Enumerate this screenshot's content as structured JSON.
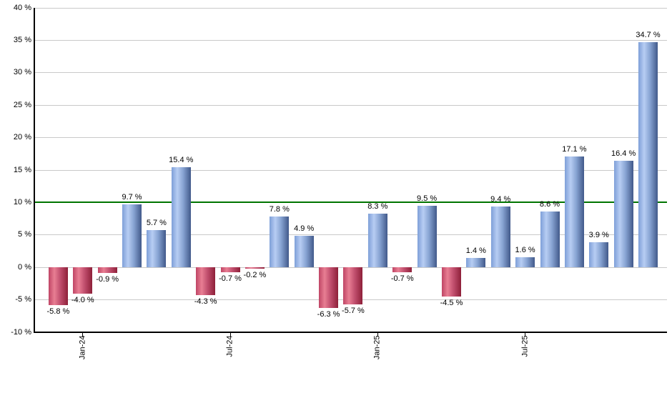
{
  "chart_data": {
    "type": "bar",
    "title": "",
    "xlabel": "",
    "ylabel": "",
    "unit": "%",
    "ylim": [
      -10,
      40
    ],
    "ytick_step": 5,
    "grid": true,
    "legend": "none",
    "y_tick_labels": [
      "40 %",
      "35 %",
      "30 %",
      "25 %",
      "20 %",
      "15 %",
      "10 %",
      "5 %",
      "0 %",
      "-5 %",
      "-10 %"
    ],
    "values": [
      -5.8,
      -4.0,
      -0.9,
      9.7,
      5.7,
      15.4,
      -4.3,
      -0.7,
      -0.2,
      7.8,
      4.9,
      -6.3,
      -5.7,
      8.3,
      -0.7,
      9.5,
      -4.5,
      1.4,
      9.4,
      1.6,
      8.6,
      17.1,
      3.9,
      16.4,
      34.7
    ],
    "value_labels": [
      "-5.8 %",
      "-4.0 %",
      "-0.9 %",
      "9.7 %",
      "5.7 %",
      "15.4 %",
      "-4.3 %",
      "-0.7 %",
      "-0.2 %",
      "7.8 %",
      "4.9 %",
      "-6.3 %",
      "-5.7 %",
      "8.3 %",
      "-0.7 %",
      "9.5 %",
      "-4.5 %",
      "1.4 %",
      "9.4 %",
      "1.6 %",
      "8.6 %",
      "17.1 %",
      "3.9 %",
      "16.4 %",
      "34.7 %"
    ],
    "x_ticks": [
      {
        "bar_index": 1,
        "label": "Jan-24"
      },
      {
        "bar_index": 7,
        "label": "Jul-24"
      },
      {
        "bar_index": 13,
        "label": "Jan-25"
      },
      {
        "bar_index": 19,
        "label": "Jul-25"
      }
    ],
    "reference_line": {
      "value": 10,
      "color": "#007400"
    },
    "colors": {
      "positive_edge": "#7e9fd8",
      "positive_light": "#b7cdf3",
      "positive_mid": "#87a3d2",
      "positive_dark": "#41598a",
      "negative_edge": "#bf4565",
      "negative_light": "#e87e93",
      "negative_mid": "#c14f6e",
      "negative_dark": "#8e2039",
      "gridline": "#c9c9c9",
      "axis": "#000000",
      "background": "#ffffff"
    }
  }
}
